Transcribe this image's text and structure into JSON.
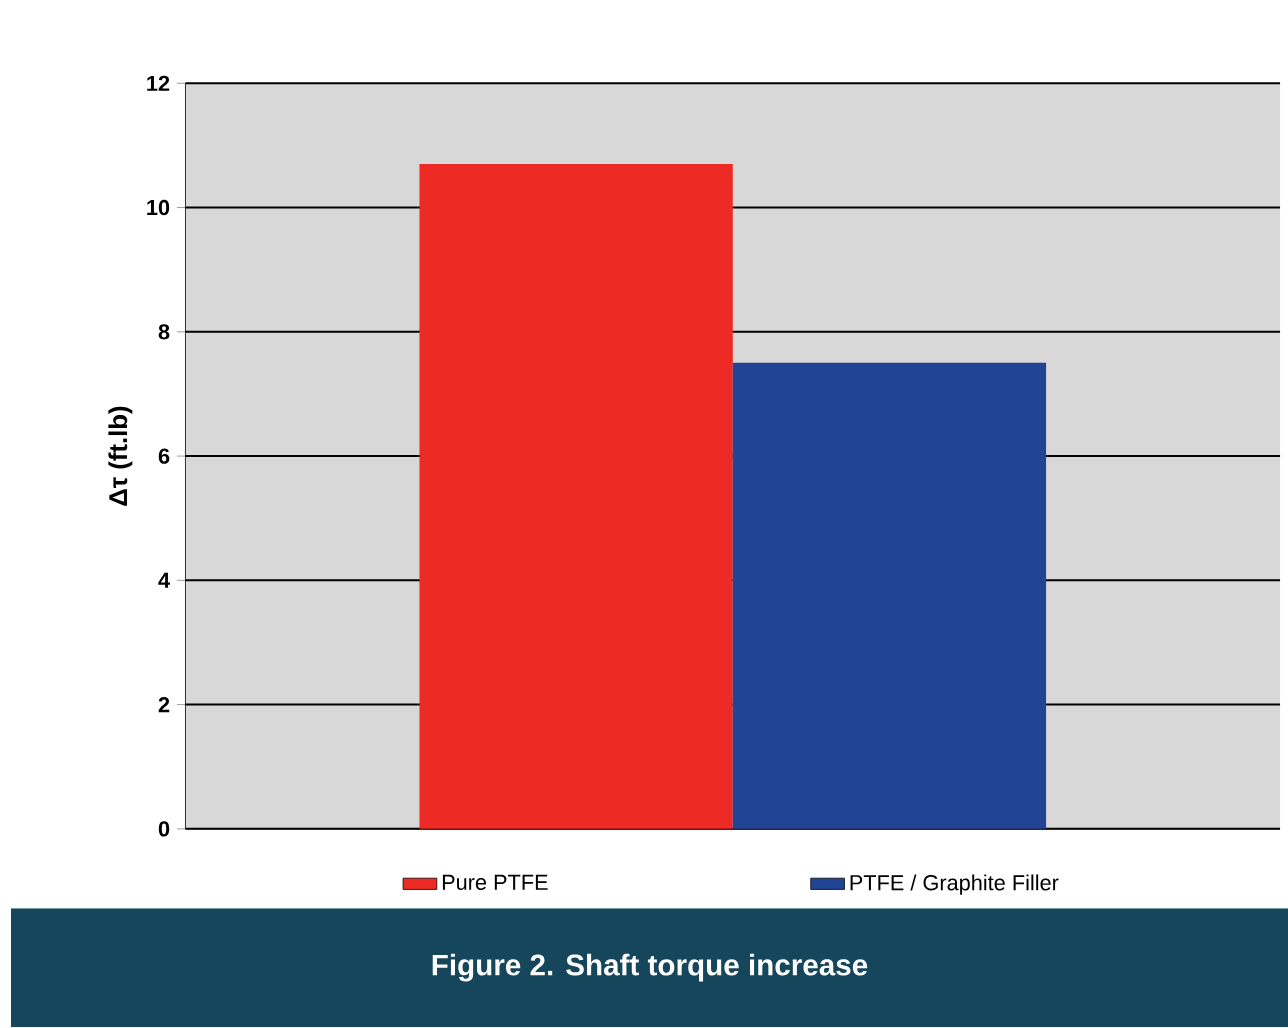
{
  "chart_data": {
    "type": "bar",
    "title": "Figure 2. Shaft torque increase",
    "ylabel": "Δτ (ft.lb)",
    "categories": [
      null
    ],
    "series": [
      {
        "name": "Pure PTFE",
        "color": "#ee2a24",
        "values": [
          10.7
        ]
      },
      {
        "name": "PTFE / Graphite Filler",
        "color": "#214594",
        "values": [
          7.5
        ]
      }
    ],
    "ylim": [
      0,
      12
    ],
    "yticks": [
      0,
      2,
      4,
      6,
      8,
      10,
      12
    ],
    "grid": "y",
    "legend": "bottom"
  }
}
